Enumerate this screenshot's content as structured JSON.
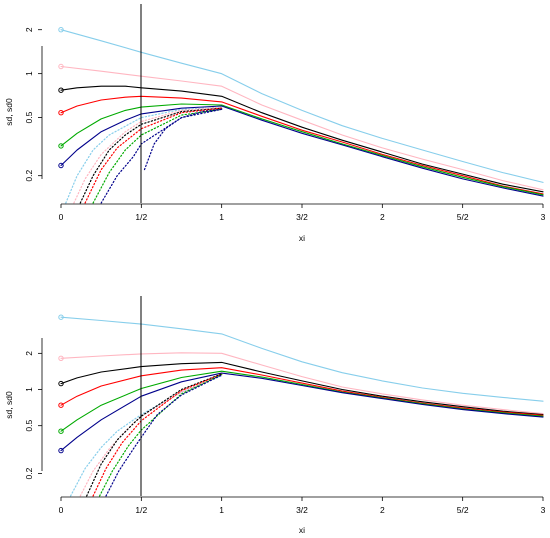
{
  "chart_data": [
    {
      "type": "line",
      "xlabel": "xi",
      "ylabel": "sd, sd0",
      "y_scale": "log",
      "xlim": [
        0,
        3
      ],
      "ylim": [
        0.13,
        3.0
      ],
      "x_ticks": [
        {
          "value": 0,
          "label": "0"
        },
        {
          "value": 0.5,
          "label": "1/2"
        },
        {
          "value": 1,
          "label": "1"
        },
        {
          "value": 1.5,
          "label": "3/2"
        },
        {
          "value": 2,
          "label": "2"
        },
        {
          "value": 2.5,
          "label": "5/2"
        },
        {
          "value": 3,
          "label": "3"
        }
      ],
      "y_ticks": [
        {
          "value": 0.2,
          "label": "0.2"
        },
        {
          "value": 0.5,
          "label": "0.5"
        },
        {
          "value": 1,
          "label": "1"
        },
        {
          "value": 2,
          "label": "2"
        }
      ],
      "vline": 0.5,
      "grid": false,
      "series": [
        {
          "color": "#87ceeb",
          "style": "solid",
          "start_marker": true,
          "x": [
            0,
            0.25,
            0.5,
            0.75,
            1.0,
            1.25,
            1.5,
            1.75,
            2.0,
            2.25,
            2.5,
            2.75,
            3.0
          ],
          "y": [
            2.0,
            1.68,
            1.4,
            1.18,
            1.0,
            0.73,
            0.56,
            0.44,
            0.36,
            0.3,
            0.25,
            0.21,
            0.18
          ]
        },
        {
          "color": "#ffb6c1",
          "style": "solid",
          "start_marker": true,
          "x": [
            0,
            0.25,
            0.5,
            0.75,
            1.0,
            1.25,
            1.5,
            1.75,
            2.0,
            2.25,
            2.5,
            2.75,
            3.0
          ],
          "y": [
            1.12,
            1.04,
            0.96,
            0.89,
            0.82,
            0.61,
            0.48,
            0.38,
            0.31,
            0.26,
            0.22,
            0.185,
            0.16
          ]
        },
        {
          "color": "#000000",
          "style": "solid",
          "start_marker": true,
          "x": [
            0,
            0.1,
            0.25,
            0.4,
            0.5,
            0.75,
            1.0,
            1.25,
            1.5,
            1.75,
            2.0,
            2.25,
            2.5,
            2.75,
            3.0
          ],
          "y": [
            0.77,
            0.8,
            0.82,
            0.82,
            0.8,
            0.76,
            0.7,
            0.54,
            0.43,
            0.35,
            0.29,
            0.24,
            0.205,
            0.175,
            0.155
          ]
        },
        {
          "color": "#ff0000",
          "style": "solid",
          "start_marker": true,
          "x": [
            0,
            0.1,
            0.25,
            0.4,
            0.5,
            0.75,
            1.0,
            1.25,
            1.5,
            1.75,
            2.0,
            2.25,
            2.5,
            2.75,
            3.0
          ],
          "y": [
            0.54,
            0.6,
            0.66,
            0.69,
            0.7,
            0.68,
            0.64,
            0.51,
            0.41,
            0.34,
            0.28,
            0.235,
            0.2,
            0.17,
            0.15
          ]
        },
        {
          "color": "#00aa00",
          "style": "solid",
          "start_marker": true,
          "x": [
            0,
            0.1,
            0.25,
            0.4,
            0.5,
            0.75,
            1.0,
            1.25,
            1.5,
            1.75,
            2.0,
            2.25,
            2.5,
            2.75,
            3.0
          ],
          "y": [
            0.32,
            0.39,
            0.49,
            0.56,
            0.59,
            0.62,
            0.61,
            0.49,
            0.4,
            0.33,
            0.275,
            0.23,
            0.195,
            0.168,
            0.148
          ]
        },
        {
          "color": "#00008b",
          "style": "solid",
          "start_marker": true,
          "x": [
            0,
            0.1,
            0.25,
            0.4,
            0.5,
            0.75,
            1.0,
            1.25,
            1.5,
            1.75,
            2.0,
            2.25,
            2.5,
            2.75,
            3.0
          ],
          "y": [
            0.235,
            0.3,
            0.4,
            0.48,
            0.53,
            0.58,
            0.6,
            0.48,
            0.39,
            0.325,
            0.27,
            0.225,
            0.19,
            0.165,
            0.145
          ]
        },
        {
          "color": "#87ceeb",
          "style": "dotted",
          "start_marker": false,
          "x": [
            0.03,
            0.1,
            0.2,
            0.3,
            0.5,
            0.75,
            1.0
          ],
          "y": [
            0.13,
            0.2,
            0.3,
            0.38,
            0.5,
            0.57,
            0.59
          ]
        },
        {
          "color": "#ffb6c1",
          "style": "dotted",
          "start_marker": false,
          "x": [
            0.08,
            0.15,
            0.25,
            0.4,
            0.5,
            0.75,
            1.0
          ],
          "y": [
            0.13,
            0.19,
            0.28,
            0.4,
            0.47,
            0.56,
            0.59
          ]
        },
        {
          "color": "#000000",
          "style": "dotted",
          "start_marker": false,
          "x": [
            0.12,
            0.2,
            0.3,
            0.4,
            0.5,
            0.75,
            1.0
          ],
          "y": [
            0.13,
            0.2,
            0.3,
            0.38,
            0.45,
            0.55,
            0.58
          ]
        },
        {
          "color": "#ff0000",
          "style": "dotted",
          "start_marker": false,
          "x": [
            0.15,
            0.25,
            0.35,
            0.5,
            0.75,
            1.0
          ],
          "y": [
            0.13,
            0.22,
            0.31,
            0.42,
            0.54,
            0.58
          ]
        },
        {
          "color": "#00aa00",
          "style": "dotted",
          "start_marker": false,
          "x": [
            0.2,
            0.3,
            0.4,
            0.5,
            0.75,
            1.0
          ],
          "y": [
            0.13,
            0.21,
            0.3,
            0.38,
            0.52,
            0.57
          ]
        },
        {
          "color": "#00008b",
          "style": "dotted",
          "start_marker": false,
          "x": [
            0.25,
            0.35,
            0.45,
            0.5,
            0.75,
            1.0
          ],
          "y": [
            0.13,
            0.2,
            0.27,
            0.33,
            0.5,
            0.57
          ]
        },
        {
          "color": "#00008b",
          "style": "dotted",
          "start_marker": false,
          "x": [
            0.52,
            0.58,
            0.65,
            0.75,
            0.88,
            1.0
          ],
          "y": [
            0.22,
            0.33,
            0.42,
            0.5,
            0.55,
            0.57
          ]
        }
      ]
    },
    {
      "type": "line",
      "xlabel": "xi",
      "ylabel": "sd, sd0",
      "y_scale": "log",
      "xlim": [
        0,
        3
      ],
      "ylim": [
        0.13,
        6.0
      ],
      "x_ticks": [
        {
          "value": 0,
          "label": "0"
        },
        {
          "value": 0.5,
          "label": "1/2"
        },
        {
          "value": 1,
          "label": "1"
        },
        {
          "value": 1.5,
          "label": "3/2"
        },
        {
          "value": 2,
          "label": "2"
        },
        {
          "value": 2.5,
          "label": "5/2"
        },
        {
          "value": 3,
          "label": "3"
        }
      ],
      "y_ticks": [
        {
          "value": 0.2,
          "label": "0.2"
        },
        {
          "value": 0.5,
          "label": "0.5"
        },
        {
          "value": 1,
          "label": "1"
        },
        {
          "value": 2,
          "label": "2"
        }
      ],
      "vline": 0.5,
      "grid": false,
      "series": [
        {
          "color": "#87ceeb",
          "style": "solid",
          "start_marker": true,
          "x": [
            0,
            0.25,
            0.5,
            0.75,
            1.0,
            1.25,
            1.5,
            1.75,
            2.0,
            2.25,
            2.5,
            2.75,
            3.0
          ],
          "y": [
            4.0,
            3.75,
            3.5,
            3.2,
            2.9,
            2.2,
            1.7,
            1.38,
            1.18,
            1.03,
            0.93,
            0.86,
            0.8
          ]
        },
        {
          "color": "#ffb6c1",
          "style": "solid",
          "start_marker": true,
          "x": [
            0,
            0.25,
            0.5,
            0.75,
            1.0,
            1.25,
            1.5,
            1.75,
            2.0,
            2.25,
            2.5,
            2.75,
            3.0
          ],
          "y": [
            1.82,
            1.9,
            1.98,
            2.02,
            2.0,
            1.6,
            1.28,
            1.05,
            0.92,
            0.82,
            0.74,
            0.68,
            0.63
          ]
        },
        {
          "color": "#000000",
          "style": "solid",
          "start_marker": true,
          "x": [
            0,
            0.1,
            0.25,
            0.5,
            0.75,
            1.0,
            1.25,
            1.5,
            1.75,
            2.0,
            2.25,
            2.5,
            2.75,
            3.0
          ],
          "y": [
            1.12,
            1.25,
            1.4,
            1.55,
            1.64,
            1.68,
            1.4,
            1.18,
            1.0,
            0.88,
            0.79,
            0.72,
            0.66,
            0.62
          ]
        },
        {
          "color": "#ff0000",
          "style": "solid",
          "start_marker": true,
          "x": [
            0,
            0.1,
            0.25,
            0.5,
            0.75,
            1.0,
            1.25,
            1.5,
            1.75,
            2.0,
            2.25,
            2.5,
            2.75,
            3.0
          ],
          "y": [
            0.74,
            0.88,
            1.07,
            1.3,
            1.45,
            1.52,
            1.32,
            1.13,
            0.97,
            0.86,
            0.77,
            0.7,
            0.65,
            0.61
          ]
        },
        {
          "color": "#00aa00",
          "style": "solid",
          "start_marker": true,
          "x": [
            0,
            0.1,
            0.25,
            0.5,
            0.75,
            1.0,
            1.25,
            1.5,
            1.75,
            2.0,
            2.25,
            2.5,
            2.75,
            3.0
          ],
          "y": [
            0.45,
            0.56,
            0.74,
            1.02,
            1.26,
            1.42,
            1.27,
            1.1,
            0.95,
            0.85,
            0.76,
            0.69,
            0.64,
            0.6
          ]
        },
        {
          "color": "#00008b",
          "style": "solid",
          "start_marker": true,
          "x": [
            0,
            0.1,
            0.25,
            0.5,
            0.75,
            1.0,
            1.25,
            1.5,
            1.75,
            2.0,
            2.25,
            2.5,
            2.75,
            3.0
          ],
          "y": [
            0.31,
            0.4,
            0.56,
            0.88,
            1.16,
            1.37,
            1.24,
            1.08,
            0.94,
            0.84,
            0.75,
            0.68,
            0.63,
            0.59
          ]
        },
        {
          "color": "#87ceeb",
          "style": "dotted",
          "start_marker": false,
          "x": [
            0.06,
            0.15,
            0.25,
            0.35,
            0.5,
            0.75,
            1.0
          ],
          "y": [
            0.13,
            0.22,
            0.33,
            0.45,
            0.62,
            0.95,
            1.3
          ]
        },
        {
          "color": "#ffb6c1",
          "style": "dotted",
          "start_marker": false,
          "x": [
            0.12,
            0.2,
            0.3,
            0.4,
            0.5,
            0.75,
            1.0
          ],
          "y": [
            0.13,
            0.21,
            0.32,
            0.45,
            0.6,
            0.95,
            1.32
          ]
        },
        {
          "color": "#000000",
          "style": "dotted",
          "start_marker": false,
          "x": [
            0.16,
            0.25,
            0.35,
            0.45,
            0.5,
            0.75,
            1.0
          ],
          "y": [
            0.13,
            0.24,
            0.38,
            0.52,
            0.6,
            1.0,
            1.35
          ]
        },
        {
          "color": "#ff0000",
          "style": "dotted",
          "start_marker": false,
          "x": [
            0.2,
            0.28,
            0.38,
            0.5,
            0.75,
            1.0
          ],
          "y": [
            0.13,
            0.22,
            0.36,
            0.55,
            0.98,
            1.34
          ]
        },
        {
          "color": "#00aa00",
          "style": "dotted",
          "start_marker": false,
          "x": [
            0.24,
            0.32,
            0.42,
            0.5,
            0.75,
            1.0
          ],
          "y": [
            0.13,
            0.21,
            0.34,
            0.46,
            0.92,
            1.33
          ]
        },
        {
          "color": "#00008b",
          "style": "dotted",
          "start_marker": false,
          "x": [
            0.28,
            0.36,
            0.45,
            0.5,
            0.6,
            0.75,
            1.0
          ],
          "y": [
            0.13,
            0.21,
            0.32,
            0.4,
            0.62,
            0.9,
            1.32
          ]
        }
      ]
    }
  ]
}
